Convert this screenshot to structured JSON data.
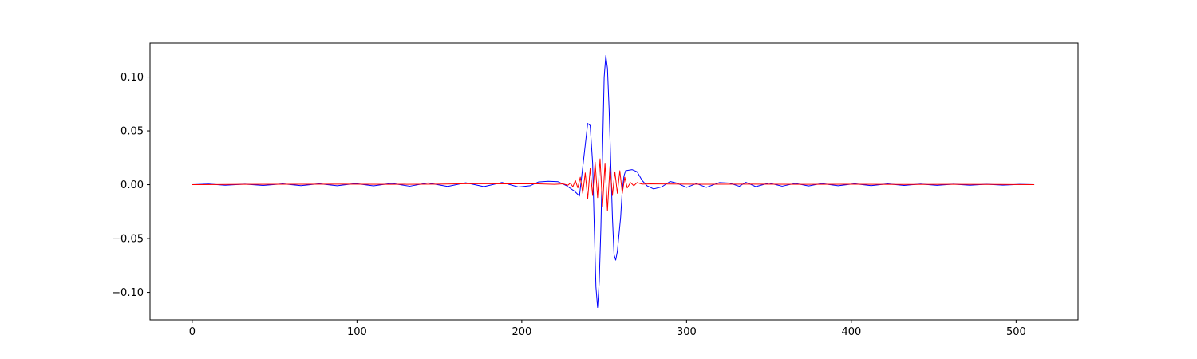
{
  "chart_data": {
    "type": "line",
    "title": "",
    "xlabel": "",
    "ylabel": "",
    "xlim": [
      -25.6,
      537.6
    ],
    "ylim": [
      -0.1255,
      0.1315
    ],
    "xticks": [
      0,
      100,
      200,
      300,
      400,
      500
    ],
    "yticks": [
      -0.1,
      -0.05,
      0.0,
      0.05,
      0.1
    ],
    "xtick_labels": [
      "0",
      "100",
      "200",
      "300",
      "400",
      "500"
    ],
    "ytick_labels": [
      "−0.10",
      "−0.05",
      "0.00",
      "0.05",
      "0.10"
    ],
    "grid": false,
    "legend": "none",
    "series": [
      {
        "color": "#0000ff",
        "points": [
          [
            0,
            0.0
          ],
          [
            10,
            0.0006
          ],
          [
            20,
            -0.0005
          ],
          [
            32,
            0.0005
          ],
          [
            43,
            -0.0007
          ],
          [
            55,
            0.0008
          ],
          [
            66,
            -0.0009
          ],
          [
            77,
            0.0009
          ],
          [
            88,
            -0.001
          ],
          [
            99,
            0.0011
          ],
          [
            110,
            -0.0011
          ],
          [
            121,
            0.0012
          ],
          [
            132,
            -0.0014
          ],
          [
            143,
            0.0016
          ],
          [
            155,
            -0.0016
          ],
          [
            166,
            0.0018
          ],
          [
            177,
            -0.0018
          ],
          [
            188,
            0.0021
          ],
          [
            198,
            -0.0022
          ],
          [
            205,
            -0.001
          ],
          [
            210,
            0.0025
          ],
          [
            216,
            0.0032
          ],
          [
            222,
            0.0028
          ],
          [
            227,
            -0.0008
          ],
          [
            232,
            -0.006
          ],
          [
            235,
            -0.0105
          ],
          [
            238,
            0.03
          ],
          [
            240,
            0.057
          ],
          [
            241.5,
            0.055
          ],
          [
            243,
            0.02
          ],
          [
            244,
            -0.04
          ],
          [
            245,
            -0.095
          ],
          [
            246,
            -0.114
          ],
          [
            247,
            -0.09
          ],
          [
            248,
            -0.04
          ],
          [
            249,
            0.03
          ],
          [
            250,
            0.1
          ],
          [
            251,
            0.12
          ],
          [
            252,
            0.108
          ],
          [
            253,
            0.07
          ],
          [
            254,
            0.02
          ],
          [
            255,
            -0.03
          ],
          [
            256,
            -0.065
          ],
          [
            257,
            -0.07
          ],
          [
            258,
            -0.062
          ],
          [
            260,
            -0.03
          ],
          [
            261,
            -0.005
          ],
          [
            262,
            0.008
          ],
          [
            263,
            0.013
          ],
          [
            267,
            0.014
          ],
          [
            270,
            0.012
          ],
          [
            273,
            0.004
          ],
          [
            276,
            -0.001
          ],
          [
            280,
            -0.004
          ],
          [
            285,
            -0.002
          ],
          [
            290,
            0.003
          ],
          [
            294,
            0.0015
          ],
          [
            300,
            -0.0025
          ],
          [
            306,
            0.001
          ],
          [
            312,
            -0.0025
          ],
          [
            320,
            0.002
          ],
          [
            326,
            0.0015
          ],
          [
            332,
            -0.0015
          ],
          [
            336,
            0.0022
          ],
          [
            342,
            -0.0018
          ],
          [
            350,
            0.0015
          ],
          [
            358,
            -0.0014
          ],
          [
            366,
            0.0012
          ],
          [
            374,
            -0.0012
          ],
          [
            382,
            0.0011
          ],
          [
            392,
            -0.001
          ],
          [
            402,
            0.0009
          ],
          [
            412,
            -0.0009
          ],
          [
            422,
            0.0008
          ],
          [
            432,
            -0.0007
          ],
          [
            442,
            0.0006
          ],
          [
            452,
            -0.0006
          ],
          [
            462,
            0.0005
          ],
          [
            472,
            -0.0005
          ],
          [
            482,
            0.0004
          ],
          [
            492,
            -0.0004
          ],
          [
            502,
            0.0003
          ],
          [
            511,
            0.0
          ]
        ]
      },
      {
        "color": "#ff0000",
        "points": [
          [
            0,
            0.0
          ],
          [
            30,
            0.0003
          ],
          [
            60,
            0.0004
          ],
          [
            90,
            0.0005
          ],
          [
            120,
            0.0003
          ],
          [
            150,
            0.0005
          ],
          [
            170,
            0.001
          ],
          [
            190,
            0.0008
          ],
          [
            210,
            0.0008
          ],
          [
            220,
            0.0003
          ],
          [
            225,
            0.0008
          ],
          [
            228,
            -0.0005
          ],
          [
            229.5,
            0.0015
          ],
          [
            231,
            -0.002
          ],
          [
            232.5,
            0.004
          ],
          [
            234,
            -0.003
          ],
          [
            235.5,
            0.007
          ],
          [
            237,
            -0.008
          ],
          [
            238.5,
            0.011
          ],
          [
            240,
            -0.013
          ],
          [
            241.5,
            0.015
          ],
          [
            243,
            -0.01
          ],
          [
            244.5,
            0.021
          ],
          [
            246,
            -0.012
          ],
          [
            247.5,
            0.024
          ],
          [
            249,
            -0.02
          ],
          [
            250.5,
            0.02
          ],
          [
            252,
            -0.024
          ],
          [
            253.5,
            0.017
          ],
          [
            255,
            -0.01
          ],
          [
            256.5,
            0.012
          ],
          [
            258,
            -0.008
          ],
          [
            259.5,
            0.013
          ],
          [
            261,
            -0.008
          ],
          [
            262.5,
            0.007
          ],
          [
            264,
            -0.003
          ],
          [
            266,
            0.002
          ],
          [
            268,
            -0.001
          ],
          [
            270,
            0.002
          ],
          [
            273,
            0.0005
          ],
          [
            278,
            0.0008
          ],
          [
            290,
            0.0006
          ],
          [
            310,
            0.0004
          ],
          [
            340,
            0.0005
          ],
          [
            370,
            0.0003
          ],
          [
            400,
            0.0004
          ],
          [
            430,
            0.0002
          ],
          [
            460,
            0.0003
          ],
          [
            490,
            0.0002
          ],
          [
            511,
            0.0
          ]
        ]
      }
    ]
  }
}
